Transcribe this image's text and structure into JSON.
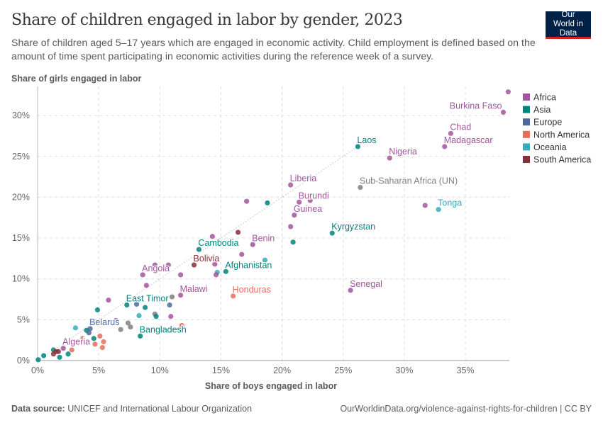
{
  "header": {
    "title": "Share of children engaged in labor by gender, 2023",
    "subtitle": "Share of children aged 5–17 years which are engaged in economic activity. Child employment is defined based on the amount of time spent participating in economic activities during the reference week of a survey.",
    "logo": "Our World in Data"
  },
  "footer": {
    "source_label": "Data source:",
    "source": "UNICEF and International Labour Organization",
    "url": "OurWorldinData.org/violence-against-rights-for-children | CC BY"
  },
  "chart_data": {
    "type": "scatter",
    "title": "Share of children engaged in labor by gender, 2023",
    "xlabel": "Share of boys engaged in labor",
    "ylabel": "Share of girls engaged in labor",
    "xlim": [
      0,
      38.5
    ],
    "ylim": [
      0,
      33
    ],
    "xticks": [
      "0%",
      "5%",
      "10%",
      "15%",
      "20%",
      "25%",
      "30%",
      "35%"
    ],
    "xtick_values": [
      0,
      5,
      10,
      15,
      20,
      25,
      30,
      35
    ],
    "yticks": [
      "0%",
      "5%",
      "10%",
      "15%",
      "20%",
      "25%",
      "30%"
    ],
    "ytick_values": [
      0,
      5,
      10,
      15,
      20,
      25,
      30
    ],
    "grid": true,
    "reference_line": "y = x",
    "legend_position": "right",
    "colors": {
      "Africa": "#a2559c",
      "Asia": "#00847e",
      "Europe": "#4c6a9c",
      "North America": "#e56e5a",
      "Oceania": "#38aaba",
      "South America": "#883039",
      "Other": "#7f7f8a"
    },
    "legend": [
      "Africa",
      "Asia",
      "Europe",
      "North America",
      "Oceania",
      "South America"
    ],
    "points": [
      {
        "label": "Burkina Faso",
        "region": "Africa",
        "x": 38.1,
        "y": 30.4
      },
      {
        "label": "",
        "region": "Africa",
        "x": 38.5,
        "y": 32.9
      },
      {
        "label": "Chad",
        "region": "Africa",
        "x": 33.8,
        "y": 27.8
      },
      {
        "label": "Madagascar",
        "region": "Africa",
        "x": 33.3,
        "y": 26.2
      },
      {
        "label": "Nigeria",
        "region": "Africa",
        "x": 28.8,
        "y": 24.8
      },
      {
        "label": "Laos",
        "region": "Asia",
        "x": 26.2,
        "y": 26.2
      },
      {
        "label": "Sub-Saharan Africa (UN)",
        "region": "Other",
        "x": 26.4,
        "y": 21.2
      },
      {
        "label": "Liberia",
        "region": "Africa",
        "x": 20.7,
        "y": 21.5
      },
      {
        "label": "Burundi",
        "region": "Africa",
        "x": 21.4,
        "y": 19.4
      },
      {
        "label": "",
        "region": "Africa",
        "x": 22.3,
        "y": 19.6
      },
      {
        "label": "Guinea",
        "region": "Africa",
        "x": 21.0,
        "y": 17.8
      },
      {
        "label": "",
        "region": "Africa",
        "x": 20.7,
        "y": 16.4
      },
      {
        "label": "",
        "region": "Asia",
        "x": 20.9,
        "y": 14.5
      },
      {
        "label": "Kyrgyzstan",
        "region": "Asia",
        "x": 24.1,
        "y": 15.6
      },
      {
        "label": "",
        "region": "Africa",
        "x": 31.7,
        "y": 19.0
      },
      {
        "label": "Tonga",
        "region": "Oceania",
        "x": 32.8,
        "y": 18.5
      },
      {
        "label": "Senegal",
        "region": "Africa",
        "x": 25.6,
        "y": 8.6
      },
      {
        "label": "",
        "region": "Africa",
        "x": 17.1,
        "y": 19.5
      },
      {
        "label": "",
        "region": "Asia",
        "x": 18.8,
        "y": 19.3
      },
      {
        "label": "Benin",
        "region": "Africa",
        "x": 17.6,
        "y": 14.2
      },
      {
        "label": "",
        "region": "South America",
        "x": 16.4,
        "y": 15.7
      },
      {
        "label": "Cambodia",
        "region": "Asia",
        "x": 13.2,
        "y": 13.6
      },
      {
        "label": "",
        "region": "Africa",
        "x": 14.3,
        "y": 15.2
      },
      {
        "label": "",
        "region": "Africa",
        "x": 16.7,
        "y": 13.0
      },
      {
        "label": "",
        "region": "Oceania",
        "x": 18.6,
        "y": 12.3
      },
      {
        "label": "Afghanistan",
        "region": "Asia",
        "x": 15.4,
        "y": 10.9
      },
      {
        "label": "",
        "region": "Oceania",
        "x": 14.7,
        "y": 10.8
      },
      {
        "label": "",
        "region": "Africa",
        "x": 14.6,
        "y": 10.5
      },
      {
        "label": "",
        "region": "Africa",
        "x": 14.5,
        "y": 11.8
      },
      {
        "label": "Bolivia",
        "region": "South America",
        "x": 12.8,
        "y": 11.7
      },
      {
        "label": "",
        "region": "Africa",
        "x": 11.7,
        "y": 10.5
      },
      {
        "label": "",
        "region": "Africa",
        "x": 10.7,
        "y": 11.7
      },
      {
        "label": "",
        "region": "Africa",
        "x": 9.6,
        "y": 11.7
      },
      {
        "label": "Angola",
        "region": "Africa",
        "x": 8.6,
        "y": 10.5
      },
      {
        "label": "",
        "region": "Africa",
        "x": 8.9,
        "y": 9.2
      },
      {
        "label": "Malawi",
        "region": "Africa",
        "x": 11.7,
        "y": 8.0
      },
      {
        "label": "",
        "region": "Other",
        "x": 11.0,
        "y": 7.8
      },
      {
        "label": "Honduras",
        "region": "North America",
        "x": 16.0,
        "y": 7.9
      },
      {
        "label": "",
        "region": "Africa",
        "x": 5.8,
        "y": 7.4
      },
      {
        "label": "East Timor",
        "region": "Asia",
        "x": 7.3,
        "y": 6.8
      },
      {
        "label": "",
        "region": "Europe",
        "x": 8.1,
        "y": 6.9
      },
      {
        "label": "",
        "region": "Asia",
        "x": 8.8,
        "y": 6.5
      },
      {
        "label": "",
        "region": "Europe",
        "x": 10.8,
        "y": 6.8
      },
      {
        "label": "",
        "region": "Asia",
        "x": 4.9,
        "y": 6.2
      },
      {
        "label": "",
        "region": "Oceania",
        "x": 8.3,
        "y": 5.5
      },
      {
        "label": "",
        "region": "Other",
        "x": 9.6,
        "y": 5.7
      },
      {
        "label": "",
        "region": "Asia",
        "x": 9.7,
        "y": 5.4
      },
      {
        "label": "",
        "region": "Africa",
        "x": 10.9,
        "y": 5.4
      },
      {
        "label": "",
        "region": "North America",
        "x": 11.8,
        "y": 4.3
      },
      {
        "label": "",
        "region": "Africa",
        "x": 6.4,
        "y": 4.9
      },
      {
        "label": "",
        "region": "South America",
        "x": 4.8,
        "y": 4.7
      },
      {
        "label": "",
        "region": "Other",
        "x": 7.4,
        "y": 4.6
      },
      {
        "label": "",
        "region": "Other",
        "x": 7.6,
        "y": 4.1
      },
      {
        "label": "",
        "region": "Other",
        "x": 6.8,
        "y": 3.8
      },
      {
        "label": "Belarus",
        "region": "Europe",
        "x": 4.3,
        "y": 3.9
      },
      {
        "label": "",
        "region": "Asia",
        "x": 4.0,
        "y": 3.7
      },
      {
        "label": "",
        "region": "Europe",
        "x": 4.2,
        "y": 3.4
      },
      {
        "label": "",
        "region": "Oceania",
        "x": 3.1,
        "y": 4.0
      },
      {
        "label": "Bangladesh",
        "region": "Asia",
        "x": 8.4,
        "y": 3.0
      },
      {
        "label": "",
        "region": "North America",
        "x": 5.1,
        "y": 3.0
      },
      {
        "label": "",
        "region": "Asia",
        "x": 4.6,
        "y": 2.7
      },
      {
        "label": "",
        "region": "North America",
        "x": 3.7,
        "y": 2.7
      },
      {
        "label": "",
        "region": "North America",
        "x": 5.4,
        "y": 2.3
      },
      {
        "label": "",
        "region": "North America",
        "x": 4.7,
        "y": 2.0
      },
      {
        "label": "",
        "region": "North America",
        "x": 5.3,
        "y": 1.6
      },
      {
        "label": "Algeria",
        "region": "Africa",
        "x": 2.1,
        "y": 1.5
      },
      {
        "label": "",
        "region": "North America",
        "x": 2.8,
        "y": 1.3
      },
      {
        "label": "",
        "region": "Asia",
        "x": 1.3,
        "y": 1.3
      },
      {
        "label": "",
        "region": "South America",
        "x": 1.5,
        "y": 1.1
      },
      {
        "label": "",
        "region": "South America",
        "x": 1.7,
        "y": 1.1
      },
      {
        "label": "",
        "region": "South America",
        "x": 1.3,
        "y": 0.8
      },
      {
        "label": "",
        "region": "Asia",
        "x": 1.8,
        "y": 0.4
      },
      {
        "label": "",
        "region": "Asia",
        "x": 0.5,
        "y": 0.6
      },
      {
        "label": "",
        "region": "Asia",
        "x": 0.05,
        "y": 0.1
      },
      {
        "label": "",
        "region": "Asia",
        "x": 2.5,
        "y": 0.8
      }
    ]
  }
}
